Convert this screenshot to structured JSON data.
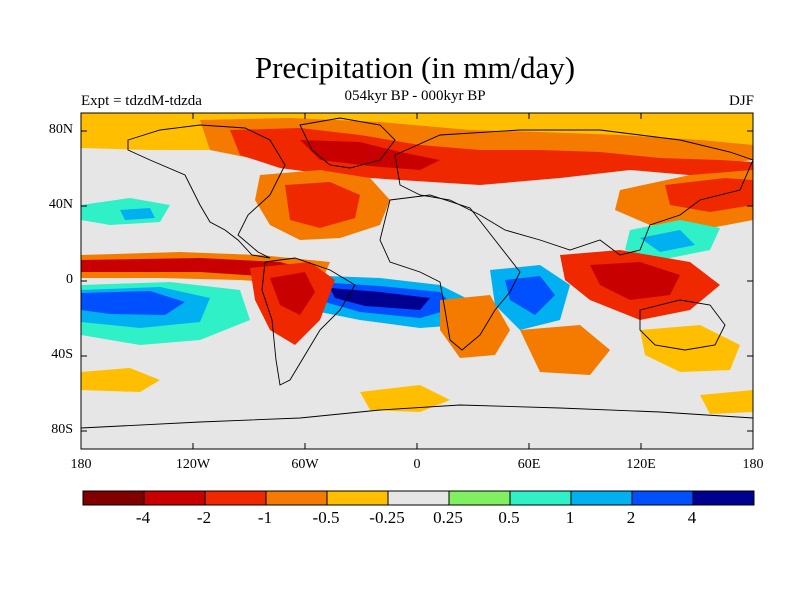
{
  "title": "Precipitation (in mm/day)",
  "subtitle": "054kyr BP - 000kyr BP",
  "left_label": "Expt = tdzdM-tdzda",
  "right_label": "DJF",
  "y_ticks": [
    "80N",
    "40N",
    "0",
    "40S",
    "80S"
  ],
  "x_ticks": [
    "180",
    "120W",
    "60W",
    "0",
    "60E",
    "120E",
    "180"
  ],
  "colorbar": {
    "colors": [
      "#800000",
      "#c80000",
      "#f02800",
      "#f47a00",
      "#ffbf00",
      "#e6e6e6",
      "#80f060",
      "#30f0c8",
      "#00b0f0",
      "#0050ff",
      "#000090"
    ],
    "labels": [
      "-4",
      "-2",
      "-1",
      "-0.5",
      "-0.25",
      "0.25",
      "0.5",
      "1",
      "2",
      "4"
    ]
  }
}
